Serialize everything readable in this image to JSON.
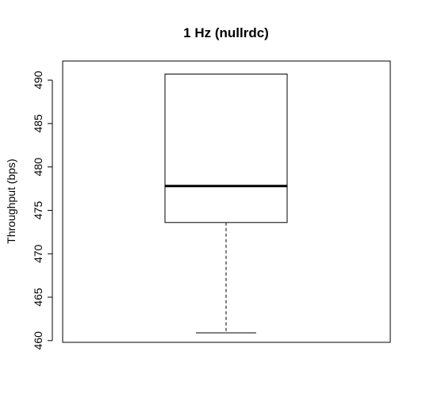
{
  "chart_data": {
    "type": "box",
    "title": "1 Hz (nullrdc)",
    "xlabel": "",
    "ylabel": "Throughput (bps)",
    "ylim": [
      459.8,
      492.2
    ],
    "yticks": [
      460,
      465,
      470,
      475,
      480,
      485,
      490
    ],
    "grid": false,
    "box": {
      "min": 460.9,
      "q1": 473.6,
      "median": 477.8,
      "q3": 490.7,
      "max": 490.7
    }
  }
}
